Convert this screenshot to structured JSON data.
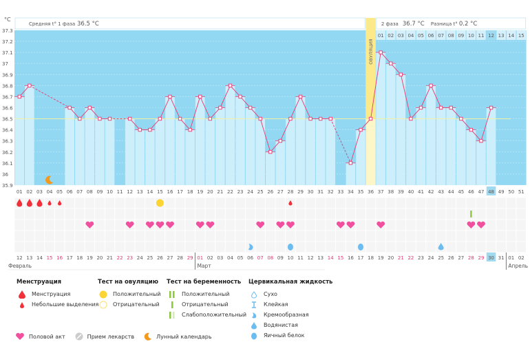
{
  "chart_data": {
    "type": "line",
    "unit_label": "°C",
    "ylim": [
      35.9,
      37.3
    ],
    "yticks": [
      "37.3",
      "37.2",
      "37.1",
      "37",
      "36.9",
      "36.8",
      "36.7",
      "36.6",
      "36.5",
      "36.4",
      "36.3",
      "36.2",
      "36.1",
      "36",
      "35.9"
    ],
    "cycle_days": [
      "01",
      "02",
      "03",
      "04",
      "05",
      "06",
      "07",
      "08",
      "09",
      "10",
      "11",
      "12",
      "13",
      "14",
      "15",
      "16",
      "17",
      "18",
      "19",
      "20",
      "21",
      "22",
      "23",
      "24",
      "25",
      "26",
      "27",
      "28",
      "29",
      "30",
      "31",
      "32",
      "33",
      "34",
      "35",
      "36",
      "37",
      "38",
      "39",
      "40",
      "41",
      "42",
      "43",
      "44",
      "45",
      "46",
      "47",
      "48",
      "49",
      "50",
      "51"
    ],
    "temperatures": [
      36.7,
      36.8,
      null,
      null,
      null,
      36.6,
      36.5,
      36.6,
      36.5,
      36.5,
      null,
      36.5,
      36.4,
      36.4,
      36.5,
      36.7,
      36.5,
      36.4,
      36.7,
      36.5,
      36.6,
      36.8,
      36.7,
      36.6,
      36.5,
      36.2,
      36.3,
      36.5,
      36.7,
      36.5,
      36.5,
      36.5,
      null,
      36.1,
      36.4,
      36.5,
      37.1,
      37.0,
      36.9,
      36.5,
      36.6,
      36.8,
      36.6,
      36.6,
      36.5,
      36.4,
      36.3,
      36.6,
      null,
      null,
      null
    ],
    "phase1_average": 36.5,
    "ovulation_day": 36,
    "today_day": 48,
    "phase2_day_labels": [
      "01",
      "02",
      "03",
      "04",
      "05",
      "06",
      "07",
      "08",
      "09",
      "10",
      "11",
      "12",
      "13",
      "14",
      "15"
    ],
    "dates": [
      "12",
      "13",
      "14",
      "15",
      "16",
      "17",
      "18",
      "19",
      "20",
      "21",
      "22",
      "23",
      "24",
      "25",
      "26",
      "27",
      "28",
      "29",
      "01",
      "02",
      "03",
      "04",
      "05",
      "06",
      "07",
      "08",
      "09",
      "10",
      "11",
      "12",
      "13",
      "14",
      "15",
      "16",
      "17",
      "18",
      "19",
      "20",
      "21",
      "22",
      "23",
      "24",
      "25",
      "26",
      "27",
      "28",
      "29",
      "30",
      "31",
      "01",
      "02"
    ],
    "weekend_days": [
      4,
      5,
      11,
      12,
      18,
      19,
      25,
      26,
      32,
      33,
      39,
      40,
      46,
      47
    ],
    "months": [
      {
        "label": "Февраль",
        "start_day": 1
      },
      {
        "label": "Март",
        "start_day": 19
      },
      {
        "label": "Апрель",
        "start_day": 50
      }
    ],
    "menstruation": {
      "1": "heavy",
      "2": "heavy",
      "3": "heavy",
      "4": "light",
      "5": "light",
      "28": "light"
    },
    "ovulation_test": {
      "15": "positive"
    },
    "pregnancy_test": {
      "46": "negative"
    },
    "intercourse": [
      8,
      12,
      14,
      15,
      16,
      19,
      20,
      25,
      27,
      28,
      33,
      34,
      37,
      46,
      47
    ],
    "cervical_fluid": {
      "24": "creamy",
      "28": "egg-white",
      "35": "egg-white",
      "43": "watery"
    },
    "moon_day": 4
  },
  "header": {
    "phase1_label": "Средняя t° 1 фаза",
    "phase1_value": "36.5 °C",
    "phase2_label": "2 фаза",
    "phase2_value": "36.7 °C",
    "diff_label": "Разница t°",
    "diff_value": "0.2 °C",
    "ovulation_label": "ОВУЛЯЦИЯ"
  },
  "colors": {
    "bg": "#92d8f2",
    "bar": "#cdeefb",
    "line": "#e8457a",
    "ovulation": "#fbe98a",
    "heart": "#f0509e",
    "blood": "#f0303a",
    "fluid": "#6bbcf0",
    "test": "#8dc63f",
    "weekend": "#e8336a"
  },
  "legend": {
    "menstruation": {
      "title": "Менструация",
      "items": [
        "Менструация",
        "Небольшие выделения"
      ]
    },
    "ovulation_test": {
      "title": "Тест на овуляцию",
      "items": [
        "Положительный",
        "Отрицательный"
      ]
    },
    "pregnancy_test": {
      "title": "Тест на беременность",
      "items": [
        "Положительный",
        "Отрицательный",
        "Слабоположительный"
      ]
    },
    "cervical": {
      "title": "Цервикальная жидкость",
      "items": [
        "Сухо",
        "Клейкая",
        "Кремообразная",
        "Водянистая",
        "Яичный белок"
      ]
    },
    "other": [
      "Половой акт",
      "Прием лекарств",
      "Лунный календарь"
    ]
  }
}
